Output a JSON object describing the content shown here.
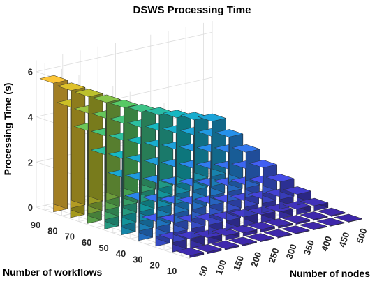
{
  "chart_data": {
    "type": "bar3d",
    "title": "DSWS Processing Time",
    "xlabel": "Number of nodes",
    "ylabel": "Number of workflows",
    "zlabel": "Processing Time (s)",
    "nodes": [
      50,
      100,
      150,
      200,
      250,
      300,
      350,
      400,
      450,
      500
    ],
    "workflows": [
      10,
      20,
      30,
      40,
      50,
      60,
      70,
      80,
      90
    ],
    "zlim": [
      0,
      6.5
    ],
    "zticks": [
      0,
      2,
      4,
      6
    ],
    "grid": true,
    "colormap": "parula",
    "values": [
      [
        0.1,
        0.08,
        0.06,
        0.05,
        0.04,
        0.04,
        0.03,
        0.03,
        0.02,
        0.02
      ],
      [
        0.55,
        0.4,
        0.28,
        0.2,
        0.15,
        0.12,
        0.09,
        0.07,
        0.05,
        0.04
      ],
      [
        1.1,
        0.9,
        0.72,
        0.6,
        0.5,
        0.42,
        0.35,
        0.3,
        0.25,
        0.22
      ],
      [
        1.8,
        1.55,
        1.3,
        1.1,
        0.95,
        0.82,
        0.72,
        0.63,
        0.55,
        0.48
      ],
      [
        2.55,
        2.25,
        1.95,
        1.7,
        1.48,
        1.3,
        1.14,
        1.0,
        0.88,
        0.78
      ],
      [
        3.3,
        2.95,
        2.62,
        2.32,
        2.06,
        1.83,
        1.63,
        1.45,
        1.29,
        1.15
      ],
      [
        4.1,
        3.7,
        3.33,
        2.98,
        2.67,
        2.4,
        2.15,
        1.94,
        1.75,
        1.58
      ],
      [
        4.9,
        4.45,
        4.05,
        3.65,
        3.3,
        2.98,
        2.7,
        2.44,
        2.21,
        2.0
      ],
      [
        5.7,
        5.2,
        4.75,
        4.32,
        3.92,
        3.56,
        3.24,
        2.95,
        2.68,
        2.44
      ]
    ]
  }
}
